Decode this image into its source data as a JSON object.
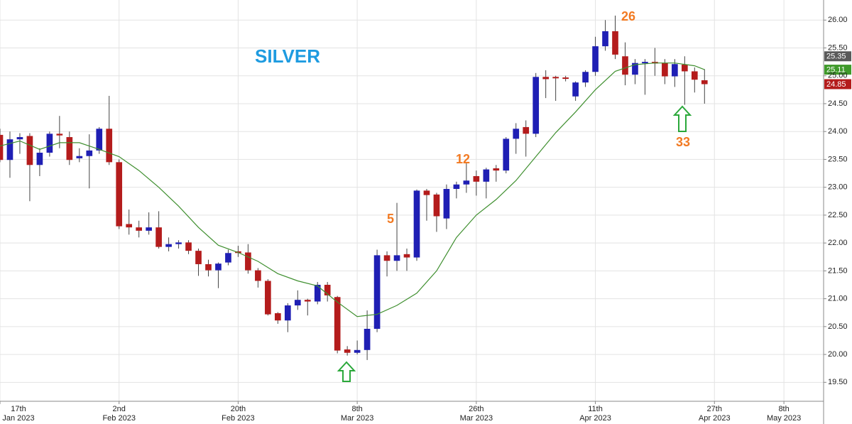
{
  "chart_data": {
    "type": "candlestick",
    "title": "SILVER",
    "x": [
      "2023-01-17",
      "2023-01-18",
      "2023-01-19",
      "2023-01-20",
      "2023-01-23",
      "2023-01-24",
      "2023-01-25",
      "2023-01-26",
      "2023-01-27",
      "2023-01-30",
      "2023-01-31",
      "2023-02-01",
      "2023-02-02",
      "2023-02-03",
      "2023-02-06",
      "2023-02-07",
      "2023-02-08",
      "2023-02-09",
      "2023-02-10",
      "2023-02-13",
      "2023-02-14",
      "2023-02-15",
      "2023-02-16",
      "2023-02-17",
      "2023-02-20",
      "2023-02-21",
      "2023-02-22",
      "2023-02-23",
      "2023-02-24",
      "2023-02-27",
      "2023-02-28",
      "2023-03-01",
      "2023-03-02",
      "2023-03-03",
      "2023-03-06",
      "2023-03-07",
      "2023-03-08",
      "2023-03-09",
      "2023-03-10",
      "2023-03-13",
      "2023-03-14",
      "2023-03-15",
      "2023-03-16",
      "2023-03-17",
      "2023-03-20",
      "2023-03-21",
      "2023-03-22",
      "2023-03-23",
      "2023-03-24",
      "2023-03-27",
      "2023-03-28",
      "2023-03-29",
      "2023-03-30",
      "2023-03-31",
      "2023-04-03",
      "2023-04-04",
      "2023-04-05",
      "2023-04-06",
      "2023-04-07",
      "2023-04-10",
      "2023-04-11",
      "2023-04-12",
      "2023-04-13",
      "2023-04-14",
      "2023-04-17",
      "2023-04-18",
      "2023-04-19",
      "2023-04-20",
      "2023-04-21",
      "2023-04-24",
      "2023-04-25",
      "2023-04-26"
    ],
    "open": [
      23.94,
      23.49,
      23.86,
      23.92,
      23.4,
      23.62,
      23.96,
      23.9,
      23.52,
      23.56,
      23.66,
      24.05,
      23.45,
      22.34,
      22.28,
      22.22,
      22.28,
      21.93,
      21.98,
      22.01,
      21.86,
      21.62,
      21.51,
      21.65,
      21.85,
      21.83,
      21.51,
      21.32,
      20.74,
      20.61,
      20.88,
      20.98,
      20.95,
      21.25,
      21.03,
      20.09,
      20.03,
      20.08,
      20.46,
      21.78,
      21.68,
      21.8,
      21.74,
      22.94,
      22.87,
      22.44,
      22.97,
      23.05,
      23.2,
      23.1,
      23.34,
      23.3,
      23.87,
      24.08,
      23.96,
      24.98,
      24.98,
      24.97,
      24.63,
      24.88,
      25.07,
      25.53,
      25.8,
      25.35,
      25.02,
      25.23,
      25.25,
      25.23,
      24.99,
      25.2,
      25.08,
      24.92
    ],
    "high": [
      24.05,
      24.0,
      23.97,
      23.97,
      23.7,
      24.0,
      24.28,
      24.0,
      23.7,
      23.95,
      24.08,
      24.64,
      23.5,
      22.6,
      22.4,
      22.55,
      22.57,
      22.1,
      22.05,
      22.05,
      21.9,
      21.7,
      21.65,
      21.88,
      21.95,
      21.98,
      21.55,
      21.35,
      20.76,
      20.92,
      21.15,
      21.0,
      21.3,
      21.3,
      21.05,
      20.15,
      20.25,
      20.79,
      21.88,
      21.85,
      22.72,
      21.9,
      22.96,
      22.97,
      22.9,
      23.05,
      23.1,
      23.45,
      23.3,
      23.35,
      23.4,
      23.9,
      24.15,
      24.2,
      25.05,
      25.1,
      25.0,
      25.0,
      24.9,
      25.1,
      25.7,
      26.0,
      26.08,
      25.6,
      25.3,
      25.3,
      25.5,
      25.3,
      25.3,
      25.35,
      25.15,
      25.12
    ],
    "low": [
      23.45,
      23.17,
      23.6,
      22.75,
      23.2,
      23.55,
      23.7,
      23.4,
      23.45,
      22.98,
      23.6,
      23.4,
      22.25,
      22.15,
      22.1,
      22.15,
      21.9,
      21.85,
      21.9,
      21.8,
      21.41,
      21.4,
      21.19,
      21.6,
      21.75,
      21.45,
      21.2,
      20.7,
      20.55,
      20.4,
      20.8,
      20.7,
      20.9,
      20.95,
      20.02,
      19.98,
      20.0,
      19.9,
      20.4,
      21.4,
      21.5,
      21.5,
      21.68,
      22.4,
      22.2,
      22.25,
      22.8,
      22.9,
      22.85,
      22.8,
      23.1,
      23.25,
      23.6,
      23.55,
      23.9,
      24.6,
      24.55,
      24.9,
      24.55,
      24.8,
      25.0,
      25.45,
      25.3,
      24.83,
      24.85,
      24.66,
      25.0,
      24.85,
      24.8,
      24.48,
      24.7,
      24.5
    ],
    "close": [
      23.49,
      23.86,
      23.9,
      23.4,
      23.62,
      23.96,
      23.93,
      23.49,
      23.56,
      23.66,
      24.05,
      23.45,
      22.3,
      22.28,
      22.22,
      22.28,
      21.93,
      21.98,
      22.01,
      21.86,
      21.62,
      21.51,
      21.63,
      21.82,
      21.82,
      21.51,
      21.32,
      20.72,
      20.61,
      20.88,
      20.98,
      20.95,
      21.25,
      21.06,
      20.07,
      20.03,
      20.08,
      20.46,
      21.78,
      21.68,
      21.78,
      21.74,
      22.94,
      22.86,
      22.48,
      22.97,
      23.05,
      23.12,
      23.1,
      23.32,
      23.3,
      23.87,
      24.05,
      23.96,
      24.98,
      24.94,
      24.96,
      24.96,
      24.88,
      25.07,
      25.53,
      25.8,
      25.38,
      25.02,
      25.23,
      25.25,
      25.22,
      24.99,
      25.21,
      25.08,
      24.93,
      24.85
    ],
    "up_color": "#1f1fb4",
    "down_color": "#b41c1c",
    "moving_average": {
      "color": "#3f8f2f",
      "x": [
        "2023-01-17",
        "2023-01-19",
        "2023-01-23",
        "2023-01-25",
        "2023-01-27",
        "2023-01-31",
        "2023-02-02",
        "2023-02-06",
        "2023-02-08",
        "2023-02-10",
        "2023-02-14",
        "2023-02-16",
        "2023-02-20",
        "2023-02-22",
        "2023-02-24",
        "2023-02-28",
        "2023-03-02",
        "2023-03-06",
        "2023-03-08",
        "2023-03-10",
        "2023-03-14",
        "2023-03-16",
        "2023-03-20",
        "2023-03-22",
        "2023-03-24",
        "2023-03-28",
        "2023-03-30",
        "2023-04-03",
        "2023-04-05",
        "2023-04-07",
        "2023-04-11",
        "2023-04-13",
        "2023-04-17",
        "2023-04-19",
        "2023-04-21",
        "2023-04-25",
        "2023-04-26"
      ],
      "values": [
        23.74,
        23.83,
        23.68,
        23.8,
        23.8,
        23.68,
        23.55,
        23.3,
        23.0,
        22.66,
        22.28,
        21.96,
        21.83,
        21.67,
        21.45,
        21.32,
        21.23,
        20.94,
        20.68,
        20.72,
        20.88,
        21.1,
        21.5,
        22.1,
        22.5,
        22.78,
        23.12,
        23.55,
        23.98,
        24.35,
        24.75,
        25.08,
        25.2,
        25.23,
        25.23,
        25.18,
        25.11
      ]
    },
    "price_tags": [
      {
        "value": 25.35,
        "color": "#5a5a5a"
      },
      {
        "value": 25.11,
        "color": "#3f9a2a"
      },
      {
        "value": 24.85,
        "color": "#b41c1c"
      }
    ],
    "annotations": [
      "5",
      "12",
      "26",
      "33"
    ],
    "xlim": [
      "2023-01-17",
      "2023-05-12"
    ],
    "xticks": [
      {
        "value": "2023-01-17",
        "label": [
          "17th",
          "Jan 2023"
        ]
      },
      {
        "value": "2023-02-02",
        "label": [
          "2nd",
          "Feb 2023"
        ]
      },
      {
        "value": "2023-02-20",
        "label": [
          "20th",
          "Feb 2023"
        ]
      },
      {
        "value": "2023-03-08",
        "label": [
          "8th",
          "Mar 2023"
        ]
      },
      {
        "value": "2023-03-26",
        "label": [
          "26th",
          "Mar 2023"
        ]
      },
      {
        "value": "2023-04-11",
        "label": [
          "11th",
          "Apr 2023"
        ]
      },
      {
        "value": "2023-04-27",
        "label": [
          "27th",
          "Apr 2023"
        ]
      },
      {
        "value": "2023-05-08",
        "label": [
          "8th",
          "May 2023"
        ]
      }
    ],
    "ylim": [
      19.16,
      26.36
    ],
    "yticks": [
      {
        "value": 19.5,
        "label": "19.50"
      },
      {
        "value": 20,
        "label": "20.00"
      },
      {
        "value": 20.5,
        "label": "20.50"
      },
      {
        "value": 21,
        "label": "21.00"
      },
      {
        "value": 21.5,
        "label": "21.50"
      },
      {
        "value": 22,
        "label": "22.00"
      },
      {
        "value": 22.5,
        "label": "22.50"
      },
      {
        "value": 23,
        "label": "23.00"
      },
      {
        "value": 23.5,
        "label": "23.50"
      },
      {
        "value": 24,
        "label": "24.00"
      },
      {
        "value": 24.5,
        "label": "24.50"
      },
      {
        "value": 25,
        "label": "25.00"
      },
      {
        "value": 25.5,
        "label": "25.50"
      },
      {
        "value": 26,
        "label": "26.00"
      }
    ],
    "grid": true
  }
}
